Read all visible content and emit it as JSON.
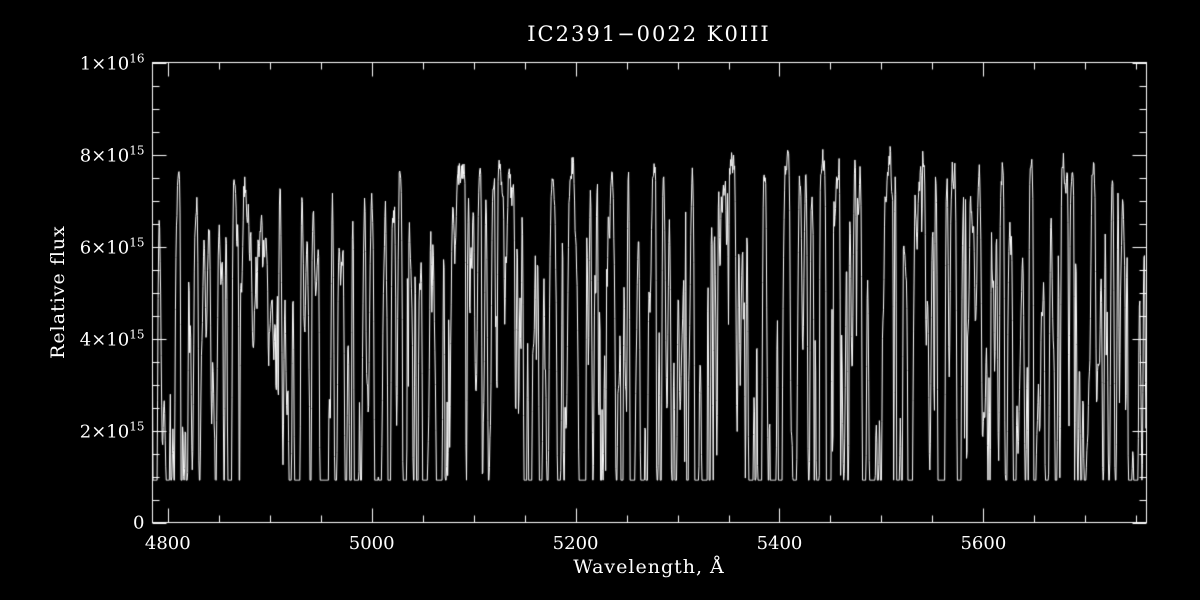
{
  "chart_data": {
    "type": "line",
    "title": "IC2391−0022  K0III",
    "xlabel": "Wavelength, Å",
    "ylabel": "Relative flux",
    "xlim": [
      4785,
      5760
    ],
    "ylim": [
      0,
      1e+16
    ],
    "background_color": "#000000",
    "line_color": "#ffffff",
    "axis_color": "#ffffff",
    "grid": false,
    "legend": false,
    "x_major_ticks": [
      4800,
      5000,
      5200,
      5400,
      5600
    ],
    "x_minor_step": 50,
    "y_major_ticks": [
      0,
      2000000000000000.0,
      4000000000000000.0,
      6000000000000000.0,
      8000000000000000.0,
      1e+16
    ],
    "y_minor_step": 500000000000000.0,
    "y_tick_labels": [
      {
        "base": "0",
        "exp": ""
      },
      {
        "base": "2×10",
        "exp": "15"
      },
      {
        "base": "4×10",
        "exp": "15"
      },
      {
        "base": "6×10",
        "exp": "15"
      },
      {
        "base": "8×10",
        "exp": "15"
      },
      {
        "base": "1×10",
        "exp": "16"
      }
    ],
    "x_tick_labels": [
      "4800",
      "5000",
      "5200",
      "5400",
      "5600"
    ],
    "description": "Optical stellar spectrum: continuum near 7.4e15–8.1e15 rising slightly with wavelength, crowded with narrow absorption lines; deepest features (Hβ 4861 Å, Mg b triplet 5167/5172/5183 Å) reach down to about 1e15.",
    "continuum_anchors": [
      [
        4785,
        7400000000000000.0
      ],
      [
        4900,
        7480000000000000.0
      ],
      [
        5000,
        7550000000000000.0
      ],
      [
        5100,
        7620000000000000.0
      ],
      [
        5200,
        7720000000000000.0
      ],
      [
        5300,
        7780000000000000.0
      ],
      [
        5400,
        7850000000000000.0
      ],
      [
        5500,
        7920000000000000.0
      ],
      [
        5600,
        8000000000000000.0
      ],
      [
        5700,
        8060000000000000.0
      ],
      [
        5760,
        8100000000000000.0
      ]
    ],
    "notable_absorption_lines": [
      {
        "center": 4861,
        "depth_frac": 0.87,
        "width": 1.3
      },
      {
        "center": 4920,
        "depth_frac": 0.66,
        "width": 1.0
      },
      {
        "center": 4957,
        "depth_frac": 0.7,
        "width": 1.0
      },
      {
        "center": 5041,
        "depth_frac": 0.62,
        "width": 0.9
      },
      {
        "center": 5110,
        "depth_frac": 0.64,
        "width": 0.9
      },
      {
        "center": 5167,
        "depth_frac": 0.8,
        "width": 1.1
      },
      {
        "center": 5172,
        "depth_frac": 0.84,
        "width": 1.1
      },
      {
        "center": 5183,
        "depth_frac": 0.82,
        "width": 1.2
      },
      {
        "center": 5270,
        "depth_frac": 0.72,
        "width": 1.1
      },
      {
        "center": 5328,
        "depth_frac": 0.66,
        "width": 0.9
      },
      {
        "center": 5429,
        "depth_frac": 0.63,
        "width": 0.9
      },
      {
        "center": 5447,
        "depth_frac": 0.6,
        "width": 0.9
      },
      {
        "center": 5528,
        "depth_frac": 0.58,
        "width": 0.9
      },
      {
        "center": 5615,
        "depth_frac": 0.62,
        "width": 0.9
      },
      {
        "center": 5711,
        "depth_frac": 0.58,
        "width": 0.9
      }
    ],
    "random_line_count": 700,
    "random_seed": 42,
    "noise_amplitude": 0.035,
    "min_flux": 920000000000000.0
  }
}
